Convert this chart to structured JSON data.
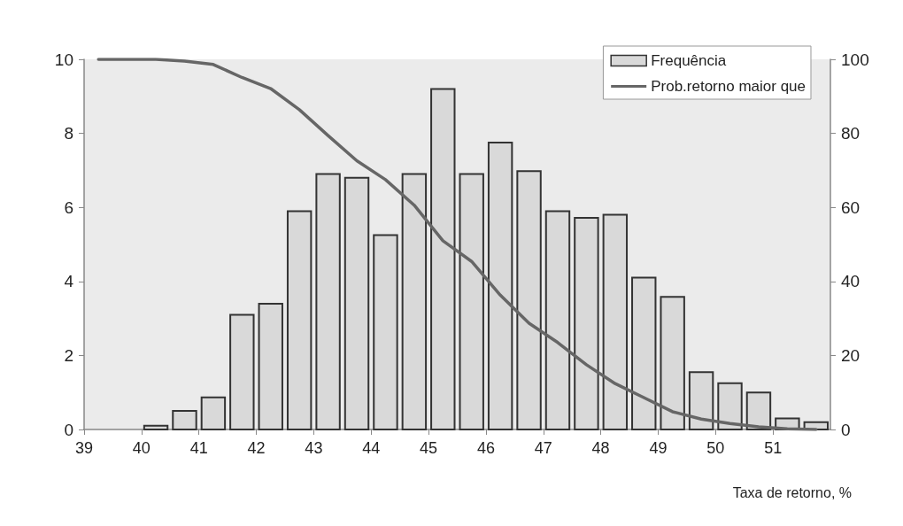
{
  "chart_data": {
    "type": "histogram",
    "xlabel": "Taxa de retorno, %",
    "bins": [
      40,
      40.5,
      41,
      41.5,
      42,
      42.5,
      43,
      43.5,
      44,
      44.5,
      45,
      45.5,
      46,
      46.5,
      47,
      47.5,
      48,
      48.5,
      49,
      49.5,
      50,
      50.5,
      51,
      51.5,
      52
    ],
    "xlim": [
      39,
      52
    ],
    "xticks": [
      39,
      40,
      41,
      42,
      43,
      44,
      45,
      46,
      47,
      48,
      49,
      50,
      51
    ],
    "ylim": [
      0,
      10
    ],
    "yticks": [
      0,
      2,
      4,
      6,
      8,
      10
    ],
    "y2lim": [
      0,
      100
    ],
    "y2ticks": [
      0,
      20,
      40,
      60,
      80,
      100
    ],
    "series": [
      {
        "name": "Frequência",
        "type": "histogram",
        "color": "#d9d9d9",
        "values": [
          0.1,
          0.5,
          0.87,
          3.1,
          3.4,
          5.9,
          6.9,
          6.8,
          5.25,
          6.9,
          9.2,
          6.9,
          7.75,
          6.98,
          5.9,
          5.72,
          5.8,
          4.1,
          3.58,
          1.55,
          1.25,
          1.0,
          0.3,
          0.2
        ]
      },
      {
        "name": "Prob.retorno maior que",
        "type": "line",
        "axis": "y2",
        "color": "#666666",
        "x": [
          39.25,
          39.75,
          40.25,
          40.75,
          41.25,
          41.75,
          42.25,
          42.75,
          43.25,
          43.75,
          44.25,
          44.75,
          45.25,
          45.75,
          46.25,
          46.75,
          47.25,
          47.75,
          48.25,
          48.75,
          49.25,
          49.75,
          50.25,
          50.75,
          51.25,
          51.75
        ],
        "values": [
          100,
          100,
          100,
          99.5,
          98.6,
          95.1,
          92.1,
          86.4,
          79.4,
          72.6,
          67.5,
          60.6,
          51,
          45.4,
          36.3,
          28.7,
          23.5,
          17.5,
          12.4,
          8.6,
          4.8,
          2.8,
          1.6,
          0.7,
          0.2,
          0
        ]
      }
    ],
    "legend": "top right",
    "grid": false,
    "marker": "none",
    "line_style": "solid"
  }
}
